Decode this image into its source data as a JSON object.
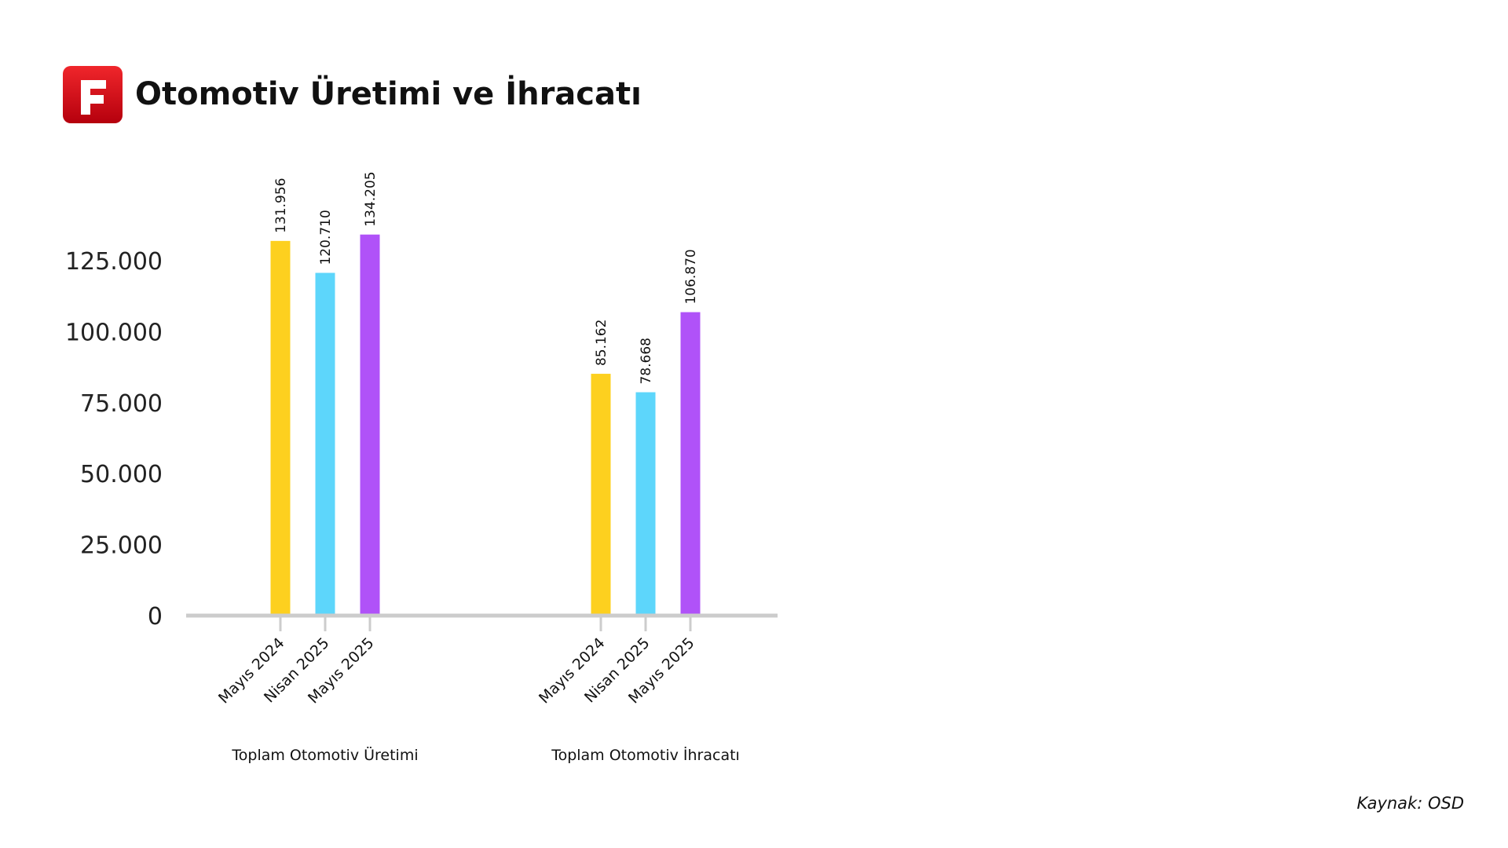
{
  "chart_data": {
    "type": "bar",
    "title": "Otomotiv Üretimi ve İhracatı",
    "source": "Kaynak: OSD",
    "categories": [
      "Toplam Otomotiv Üretimi",
      "Toplam Otomotiv İhracatı"
    ],
    "series": [
      {
        "name": "Mayıs 2024",
        "color": "#fdd01f",
        "values": [
          131956,
          85162
        ],
        "value_labels": [
          "131.956",
          "85.162"
        ]
      },
      {
        "name": "Nisan 2025",
        "color": "#5dd6fb",
        "values": [
          120710,
          78668
        ],
        "value_labels": [
          "120.710",
          "78.668"
        ]
      },
      {
        "name": "Mayıs 2025",
        "color": "#b052f8",
        "values": [
          134205,
          106870
        ],
        "value_labels": [
          "134.205",
          "106.870"
        ]
      }
    ],
    "ylim": [
      0,
      140000
    ],
    "yticks": [
      0,
      {
        "value": 25000,
        "label": "25.000"
      },
      {
        "value": 50000,
        "label": "50.000"
      },
      {
        "value": 75000,
        "label": "75.000"
      },
      {
        "value": 100000,
        "label": "100.000"
      },
      {
        "value": 125000,
        "label": "125.000"
      }
    ],
    "grid": false
  }
}
